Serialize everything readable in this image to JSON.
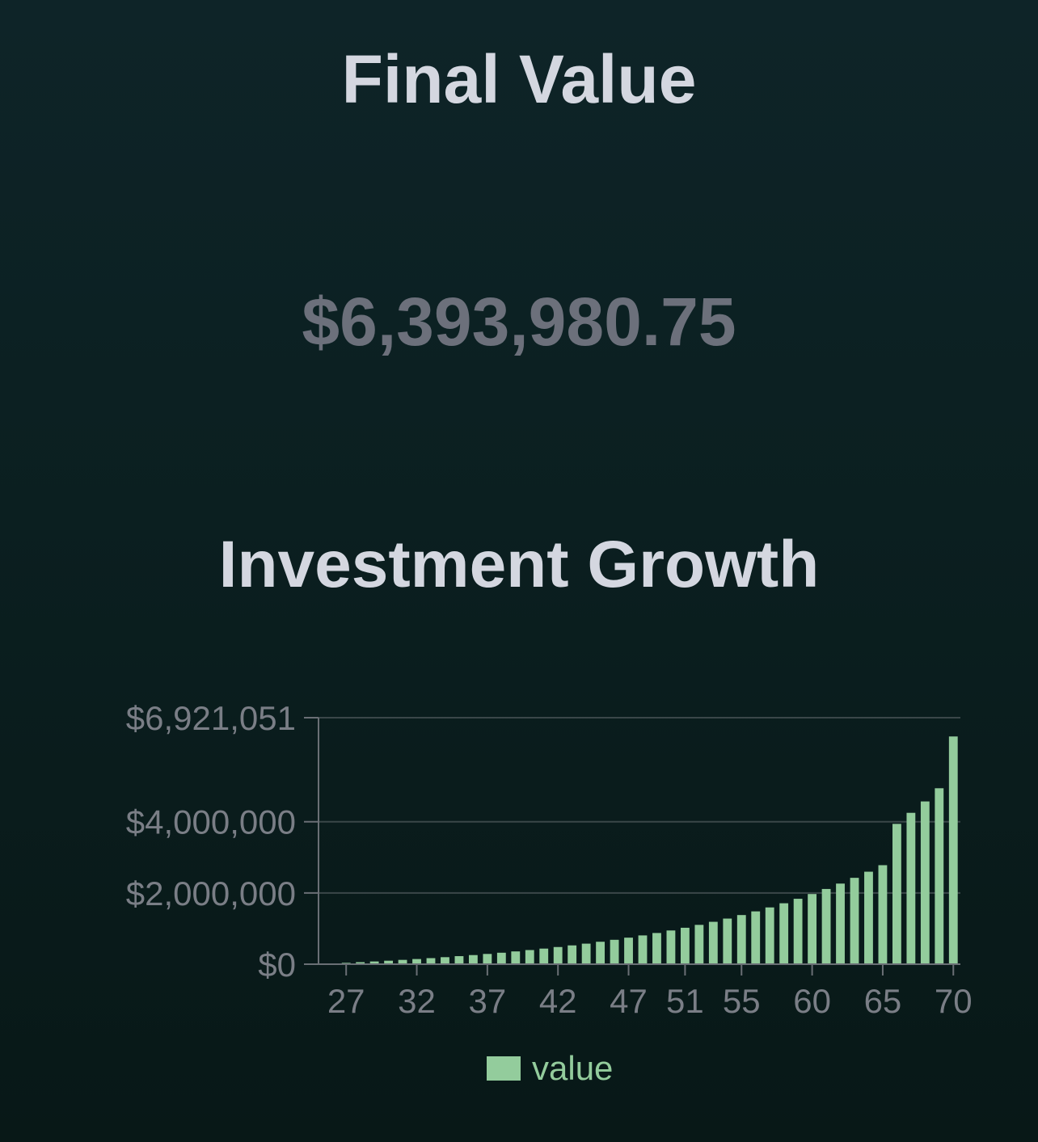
{
  "summary": {
    "title": "Final Value",
    "value": "$6,393,980.75"
  },
  "chart_data": {
    "type": "bar",
    "title": "Investment Growth",
    "x": [
      26,
      27,
      28,
      29,
      30,
      31,
      32,
      33,
      34,
      35,
      36,
      37,
      38,
      39,
      40,
      41,
      42,
      43,
      44,
      45,
      46,
      47,
      48,
      49,
      50,
      51,
      52,
      53,
      54,
      55,
      56,
      57,
      58,
      59,
      60,
      61,
      62,
      63,
      64,
      65,
      66,
      67,
      68,
      69,
      70
    ],
    "x_tick_labels": [
      "27",
      "32",
      "37",
      "42",
      "47",
      "51",
      "55",
      "60",
      "65",
      "70"
    ],
    "x_tick_values": [
      27,
      32,
      37,
      42,
      47,
      51,
      55,
      60,
      65,
      70
    ],
    "ylim": [
      0,
      6921051
    ],
    "y_tick_labels": [
      "$0",
      "$2,000,000",
      "$4,000,000",
      "$6,921,051"
    ],
    "y_tick_values": [
      0,
      2000000,
      4000000,
      6921051
    ],
    "grid": true,
    "legend_position": "bottom",
    "series": [
      {
        "name": "value",
        "color": "#93cc9c",
        "values": [
          20000,
          38000,
          57000,
          77000,
          98000,
          121000,
          145000,
          170000,
          197000,
          226000,
          256000,
          288000,
          322000,
          359000,
          397000,
          438000,
          482000,
          528000,
          577000,
          630000,
          685000,
          745000,
          808000,
          876000,
          947000,
          1023000,
          1104000,
          1190000,
          1281000,
          1380000,
          1483000,
          1594000,
          1711000,
          1837000,
          1970000,
          2112000,
          2263000,
          2425000,
          2597000,
          2780000,
          3940000,
          4250000,
          4570000,
          4940000,
          6393981
        ]
      }
    ]
  }
}
